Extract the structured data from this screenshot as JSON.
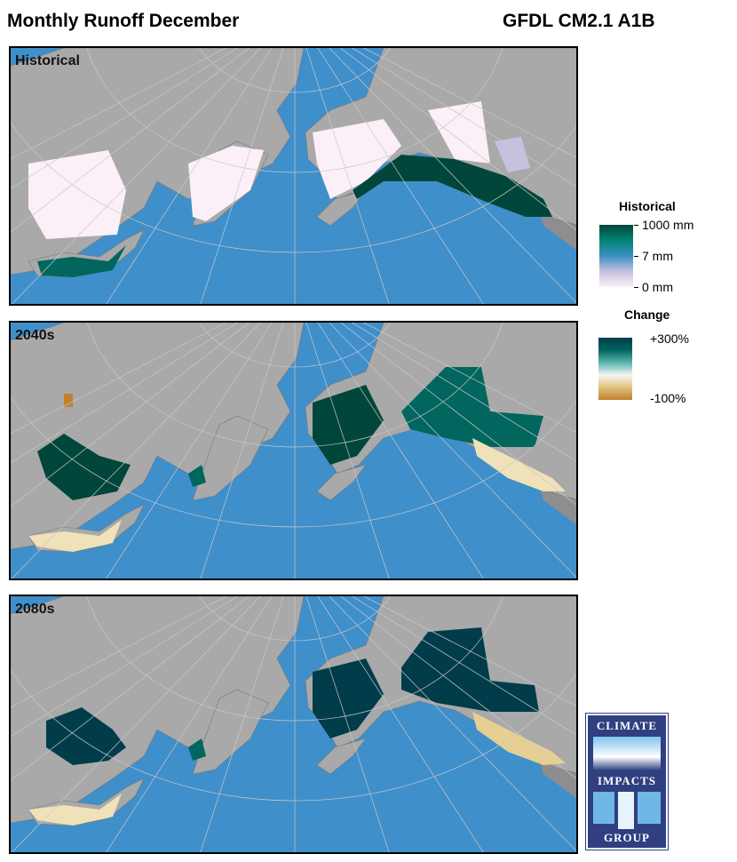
{
  "header": {
    "title": "Monthly Runoff December",
    "model": "GFDL CM2.1 A1B"
  },
  "panels": [
    {
      "label": "Historical",
      "kind": "historical"
    },
    {
      "label": "2040s",
      "kind": "change1"
    },
    {
      "label": "2080s",
      "kind": "change2"
    }
  ],
  "legend": {
    "historical": {
      "title": "Historical",
      "ticks": [
        "1000 mm",
        "7 mm",
        "0 mm"
      ],
      "colors": [
        "#01463a",
        "#018571",
        "#3b8fc2",
        "#c6c2de",
        "#fbf0f8"
      ]
    },
    "change": {
      "title": "Change",
      "ticks": [
        "+300%",
        "-100%"
      ],
      "colors": [
        "#003c4a",
        "#01665e",
        "#5ab4ac",
        "#f5f5f5",
        "#dfc27d",
        "#bf812d"
      ]
    }
  },
  "colors": {
    "ocean": "#3f8fcb",
    "land": "#a9a9a9",
    "outside": "#8e8e8e"
  },
  "logo": {
    "lines": [
      "CLIMATE",
      "IMPACTS",
      "GROUP"
    ]
  }
}
